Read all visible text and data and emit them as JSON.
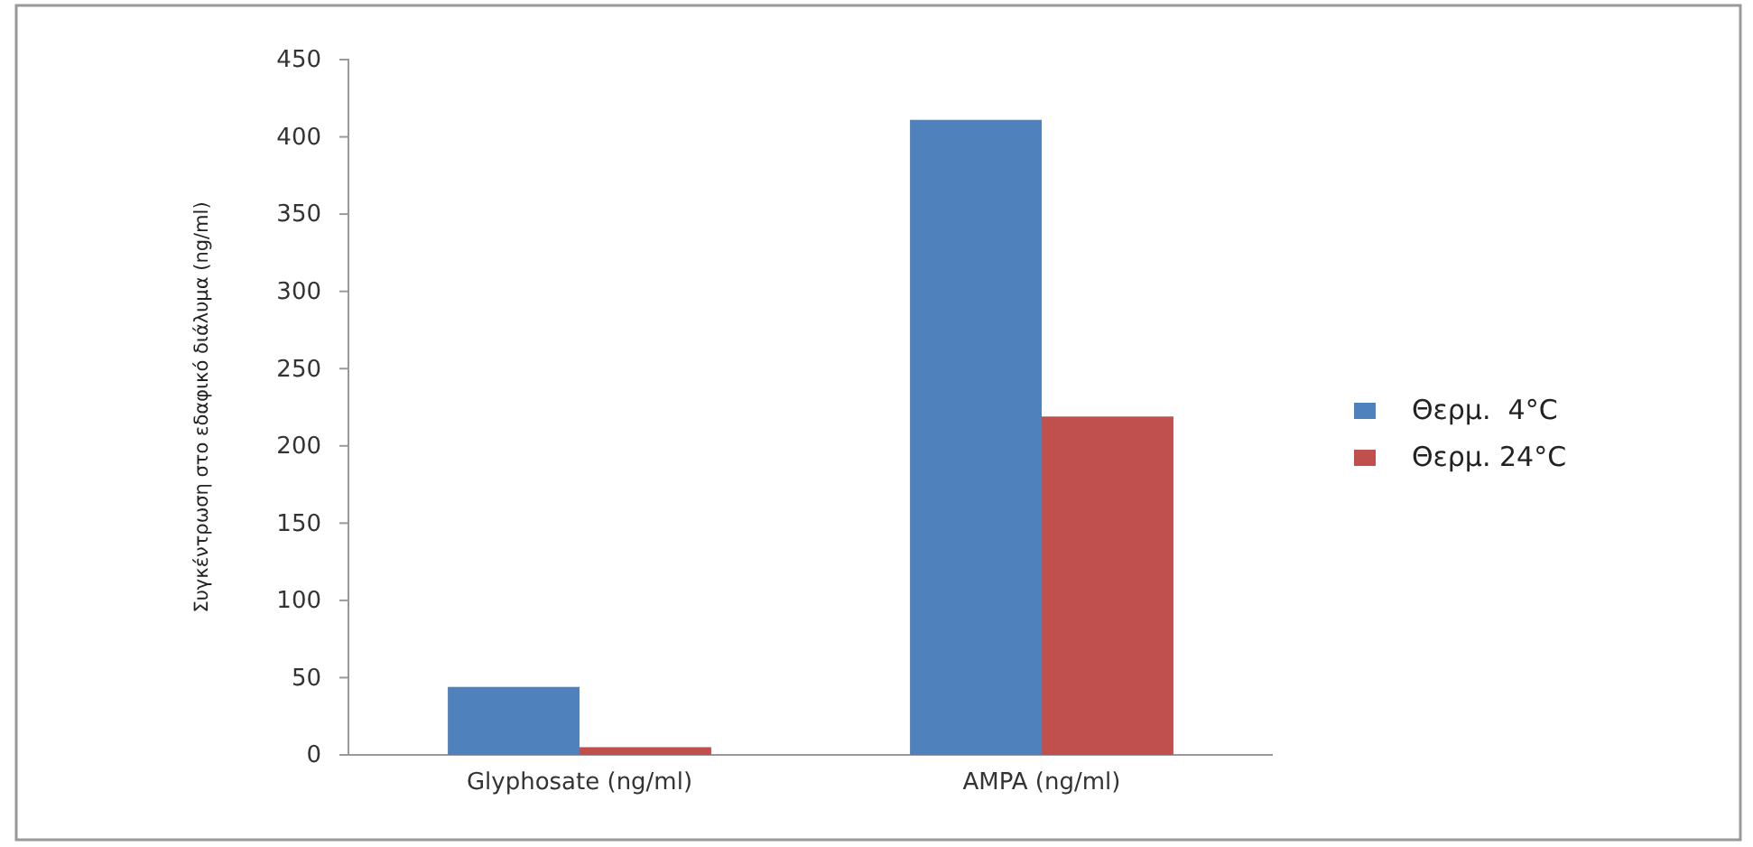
{
  "chart_data": {
    "type": "bar",
    "ylabel": "Συγκέντρωση στο εδαφικό διάλυμα (ng/ml)",
    "categories": [
      "Glyphosate (ng/ml)",
      "AMPA (ng/ml)"
    ],
    "series": [
      {
        "name": "Θερμ.  4°C",
        "color": "#4f81bd",
        "values": [
          44,
          411
        ]
      },
      {
        "name": "Θερμ. 24°C",
        "color": "#c0504d",
        "values": [
          5,
          219
        ]
      }
    ],
    "ylim": [
      0,
      450
    ],
    "yticks": [
      0,
      50,
      100,
      150,
      200,
      250,
      300,
      350,
      400,
      450
    ],
    "legend": "right"
  }
}
